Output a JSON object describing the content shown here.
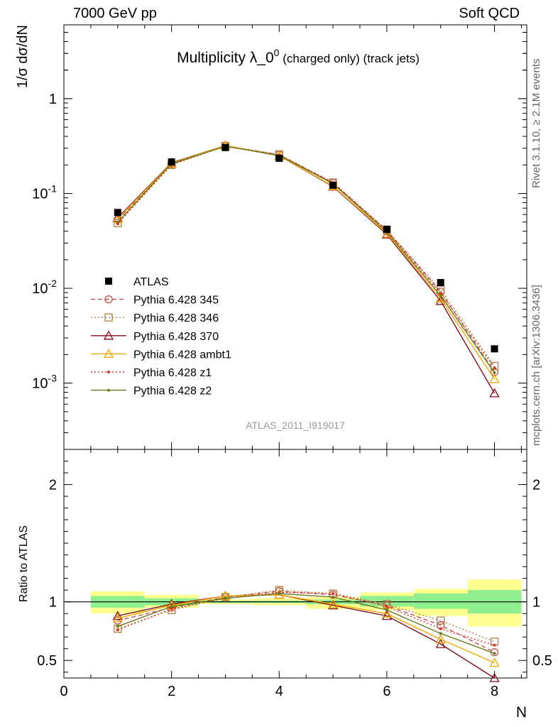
{
  "header": {
    "left": "7000 GeV pp",
    "right": "Soft QCD"
  },
  "side_labels": {
    "rivet": "Rivet 3.1.10, ≥ 2.1M events",
    "mcplots": "mcplots.cern.ch [arXiv:1306.3436]"
  },
  "chart_data": {
    "type": "line",
    "title": "Multiplicity λ_0",
    "title_sup": "0",
    "title_suffix": " (charged only) (track jets)",
    "analysis_tag": "ATLAS_2011_I919017",
    "xlabel": "N",
    "ylabel": "1/σ dσ/dN",
    "ratio_ylabel": "Ratio to ATLAS",
    "xlim": [
      0,
      8.6
    ],
    "main_ylim": [
      0.0002,
      6
    ],
    "main_yscale": "log",
    "ratio_ylim": [
      0.35,
      2.3
    ],
    "x_ticks": [
      "0",
      "2",
      "4",
      "6",
      "8"
    ],
    "main_y_ticks": [
      "1",
      "10^-1",
      "10^-2",
      "10^-3"
    ],
    "ratio_y_ticks": [
      "0.5",
      "1",
      "2"
    ],
    "legend_position": "middle-left",
    "x": [
      1,
      2,
      3,
      4,
      5,
      6,
      7,
      8
    ],
    "data_series": {
      "name": "ATLAS",
      "values": [
        0.063,
        0.215,
        0.305,
        0.235,
        0.122,
        0.042,
        0.0115,
        0.0023
      ]
    },
    "series": [
      {
        "name": "Pythia 6.428 345",
        "color": "#c0504d",
        "dash": "6,4",
        "marker": "circle",
        "ratio": [
          0.84,
          0.95,
          1.04,
          1.09,
          1.06,
          0.97,
          0.8,
          0.57
        ]
      },
      {
        "name": "Pythia 6.428 346",
        "color": "#b08040",
        "dash": "2,3",
        "marker": "square",
        "ratio": [
          0.77,
          0.93,
          1.04,
          1.1,
          1.07,
          0.98,
          0.84,
          0.66
        ]
      },
      {
        "name": "Pythia 6.428 370",
        "color": "#8b0a1a",
        "dash": "",
        "marker": "triangle",
        "ratio": [
          0.88,
          0.98,
          1.05,
          1.06,
          0.97,
          0.88,
          0.64,
          0.34
        ]
      },
      {
        "name": "Pythia 6.428 ambt1",
        "color": "#f0a800",
        "dash": "",
        "marker": "triangle",
        "ratio": [
          0.86,
          0.97,
          1.05,
          1.06,
          0.98,
          0.9,
          0.68,
          0.48
        ]
      },
      {
        "name": "Pythia 6.428 z1",
        "color": "#e03020",
        "dash": "2,3",
        "marker": "dot",
        "ratio": [
          0.76,
          0.94,
          1.03,
          1.08,
          1.07,
          0.96,
          0.77,
          0.63
        ]
      },
      {
        "name": "Pythia 6.428 z2",
        "color": "#6b7a1e",
        "dash": "",
        "marker": "dot",
        "ratio": [
          0.79,
          0.96,
          1.03,
          1.07,
          1.04,
          0.93,
          0.73,
          0.56
        ]
      }
    ],
    "uncertainty_bands": {
      "stat_color": "#90f090",
      "total_color": "#ffff90",
      "bins": [
        {
          "lo": 0.5,
          "hi": 1.5,
          "stat": [
            0.95,
            1.05
          ],
          "total": [
            0.9,
            1.09
          ]
        },
        {
          "lo": 1.5,
          "hi": 2.5,
          "stat": [
            0.97,
            1.03
          ],
          "total": [
            0.95,
            1.06
          ]
        },
        {
          "lo": 2.5,
          "hi": 3.5,
          "stat": [
            0.99,
            1.01
          ],
          "total": [
            0.98,
            1.02
          ]
        },
        {
          "lo": 3.5,
          "hi": 4.5,
          "stat": [
            0.99,
            1.01
          ],
          "total": [
            0.97,
            1.03
          ]
        },
        {
          "lo": 4.5,
          "hi": 5.5,
          "stat": [
            0.98,
            1.02
          ],
          "total": [
            0.94,
            1.04
          ]
        },
        {
          "lo": 5.5,
          "hi": 6.5,
          "stat": [
            0.96,
            1.05
          ],
          "total": [
            0.93,
            1.08
          ]
        },
        {
          "lo": 6.5,
          "hi": 7.5,
          "stat": [
            0.94,
            1.07
          ],
          "total": [
            0.88,
            1.11
          ]
        },
        {
          "lo": 7.5,
          "hi": 8.5,
          "stat": [
            0.9,
            1.1
          ],
          "total": [
            0.79,
            1.19
          ]
        }
      ]
    }
  }
}
